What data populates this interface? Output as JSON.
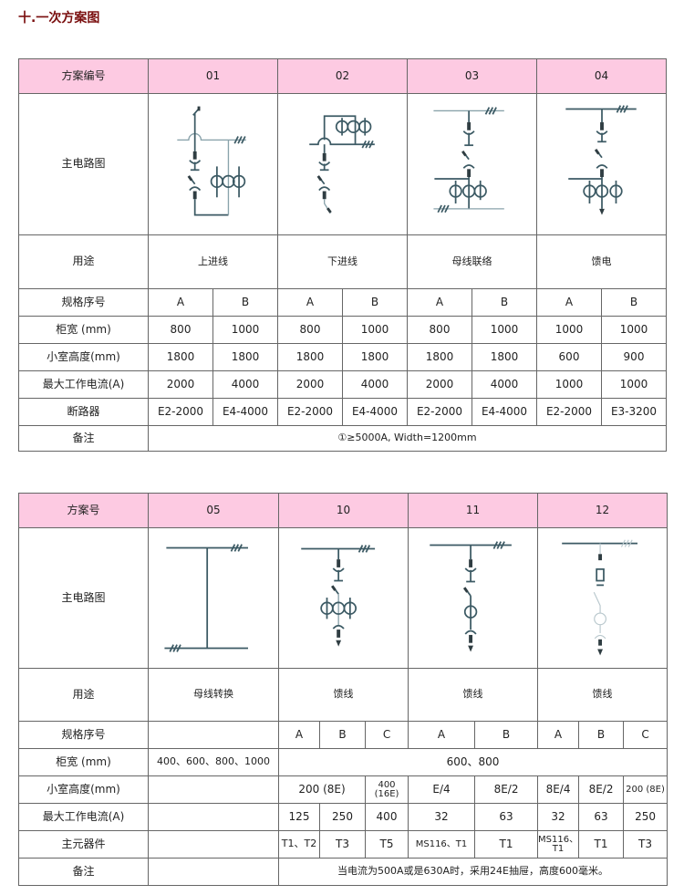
{
  "title": "十.一次方案图",
  "table1": {
    "header": {
      "label": "方案编号",
      "schemes": [
        "01",
        "02",
        "03",
        "04"
      ]
    },
    "rows": {
      "diagram": "主电路图",
      "usage": {
        "label": "用途",
        "values": [
          "上进线",
          "下进线",
          "母线联络",
          "馈电"
        ]
      },
      "spec": {
        "label": "规格序号",
        "values": [
          "A",
          "B",
          "A",
          "B",
          "A",
          "B",
          "A",
          "B"
        ]
      },
      "width": {
        "label": "柜宽 (mm)",
        "values": [
          "800",
          "1000",
          "800",
          "1000",
          "800",
          "1000",
          "1000",
          "1000"
        ]
      },
      "height": {
        "label": "小室高度(mm)",
        "values": [
          "1800",
          "1800",
          "1800",
          "1800",
          "1800",
          "1800",
          "600",
          "900"
        ]
      },
      "current": {
        "label": "最大工作电流(A)",
        "values": [
          "2000",
          "4000",
          "2000",
          "4000",
          "2000",
          "4000",
          "1000",
          "1000"
        ]
      },
      "breaker": {
        "label": "断路器",
        "values": [
          "E2-2000",
          "E4-4000",
          "E2-2000",
          "E4-4000",
          "E2-2000",
          "E4-4000",
          "E2-2000",
          "E3-3200"
        ]
      },
      "note": {
        "label": "备注",
        "value": "①≥5000A, Width=1200mm"
      }
    }
  },
  "table2": {
    "header": {
      "label": "方案号",
      "schemes": [
        "05",
        "10",
        "11",
        "12"
      ]
    },
    "rows": {
      "diagram": "主电路图",
      "usage": {
        "label": "用途",
        "values": [
          "母线转换",
          "馈线",
          "馈线",
          "馈线"
        ]
      },
      "spec": {
        "label": "规格序号",
        "values": [
          "",
          "A",
          "B",
          "C",
          "A",
          "B",
          "A",
          "B",
          "C"
        ]
      },
      "width": {
        "label": "柜宽 (mm)",
        "values": [
          "400、600、800、1000",
          "600、800"
        ]
      },
      "height": {
        "label": "小室高度(mm)",
        "values": [
          "",
          "200 (8E)",
          "400 (16E)",
          "E/4",
          "8E/2",
          "8E/4",
          "8E/2",
          "200 (8E)"
        ]
      },
      "current": {
        "label": "最大工作电流(A)",
        "values": [
          "",
          "125",
          "250",
          "400",
          "32",
          "63",
          "32",
          "63",
          "250"
        ]
      },
      "component": {
        "label": "主元器件",
        "values": [
          "",
          "T1、T2",
          "T3",
          "T5",
          "MS116、T1",
          "T1",
          "MS116、T1",
          "T1",
          "T3"
        ]
      },
      "note": {
        "label": "备注",
        "value": "当电流为500A或是630A时，采用24E抽屉，高度600毫米。"
      }
    }
  },
  "colors": {
    "header_bg": "#fdcae2",
    "title": "#7a0f0f",
    "line": "#3c5a64"
  }
}
